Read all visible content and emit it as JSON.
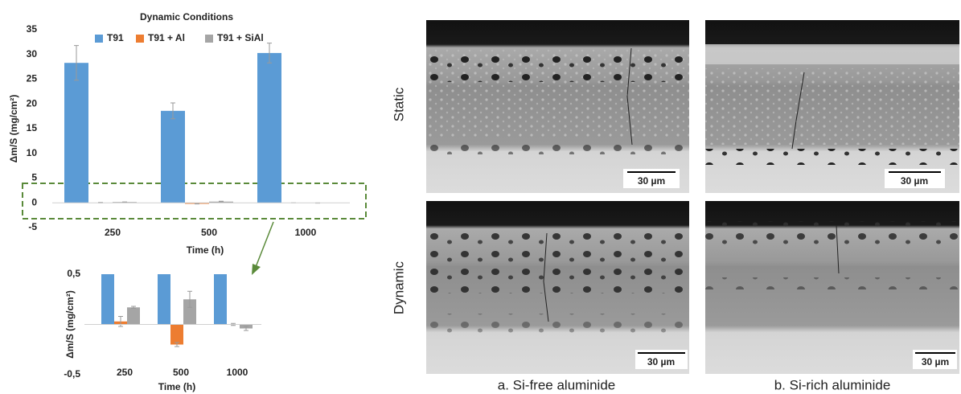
{
  "chart_data": [
    {
      "type": "bar",
      "title": "Dynamic Conditions",
      "ylabel": "Δm/S (mg/cm²)",
      "xlabel": "Time (h)",
      "categories": [
        "250",
        "500",
        "1000"
      ],
      "series": [
        {
          "name": "T91",
          "color": "#5b9bd5",
          "values": [
            28.3,
            18.6,
            30.3
          ],
          "errors": [
            3.5,
            1.6,
            2.0
          ]
        },
        {
          "name": "T91 + Al",
          "color": "#ed7d31",
          "values": [
            0.03,
            -0.2,
            0.0
          ],
          "errors": [
            0.05,
            0.02,
            0.01
          ]
        },
        {
          "name": "T91 + SiAl",
          "color": "#a5a5a5",
          "values": [
            0.17,
            0.25,
            -0.04
          ],
          "errors": [
            0.01,
            0.08,
            0.02
          ]
        }
      ],
      "ylim": [
        -5,
        35
      ],
      "yticks": [
        -5,
        0,
        5,
        10,
        15,
        20,
        25,
        30,
        35
      ],
      "legend": "top"
    },
    {
      "type": "bar",
      "ylabel": "Δm/S (mg/cm²)",
      "xlabel": "Time (h)",
      "categories": [
        "250",
        "500",
        "1000"
      ],
      "series": [
        {
          "name": "T91",
          "color": "#5b9bd5",
          "values": [
            28.3,
            18.6,
            30.3
          ],
          "errors": [
            3.5,
            1.6,
            2.0
          ]
        },
        {
          "name": "T91 + Al",
          "color": "#ed7d31",
          "values": [
            0.03,
            -0.2,
            0.0
          ],
          "errors": [
            0.05,
            0.02,
            0.01
          ]
        },
        {
          "name": "T91 + SiAl",
          "color": "#a5a5a5",
          "values": [
            0.17,
            0.25,
            -0.04
          ],
          "errors": [
            0.01,
            0.08,
            0.02
          ]
        }
      ],
      "ylim": [
        -0.5,
        0.5
      ],
      "yticks": [
        {
          "value": -0.5,
          "label": "-0,5"
        },
        {
          "value": 0.5,
          "label": "0,5"
        }
      ]
    }
  ],
  "micrographs": {
    "rows": [
      "Static",
      "Dynamic"
    ],
    "scale_bars": [
      "30 µm",
      "30 µm",
      "30 µm",
      "30 µm"
    ],
    "captions": [
      "a. Si-free aluminide",
      "b. Si-rich aluminide"
    ]
  }
}
